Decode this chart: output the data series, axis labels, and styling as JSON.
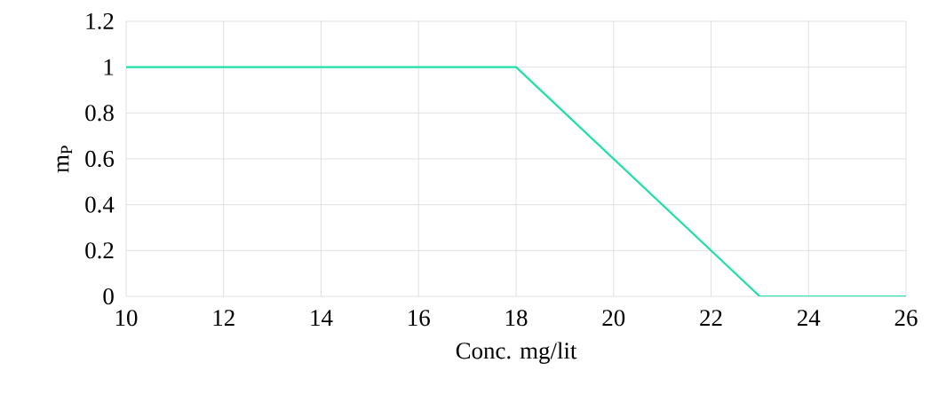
{
  "chart_data": {
    "type": "line",
    "xlabel": "Conc. mg/lit",
    "ylabel": "m$_{P}$",
    "x": [
      10,
      18,
      23,
      26
    ],
    "series": [
      {
        "color": "#20e0a8",
        "values": [
          1,
          1,
          0,
          0
        ]
      }
    ],
    "xlim": [
      10,
      26
    ],
    "xticks": [
      10,
      12,
      14,
      16,
      18,
      20,
      22,
      24,
      26
    ],
    "ylim": [
      0,
      1.2
    ],
    "yticks": [
      0,
      0.2,
      0.4,
      0.6,
      0.8,
      1,
      1.2
    ],
    "grid": true,
    "marker": "none",
    "line_style": "solid"
  }
}
